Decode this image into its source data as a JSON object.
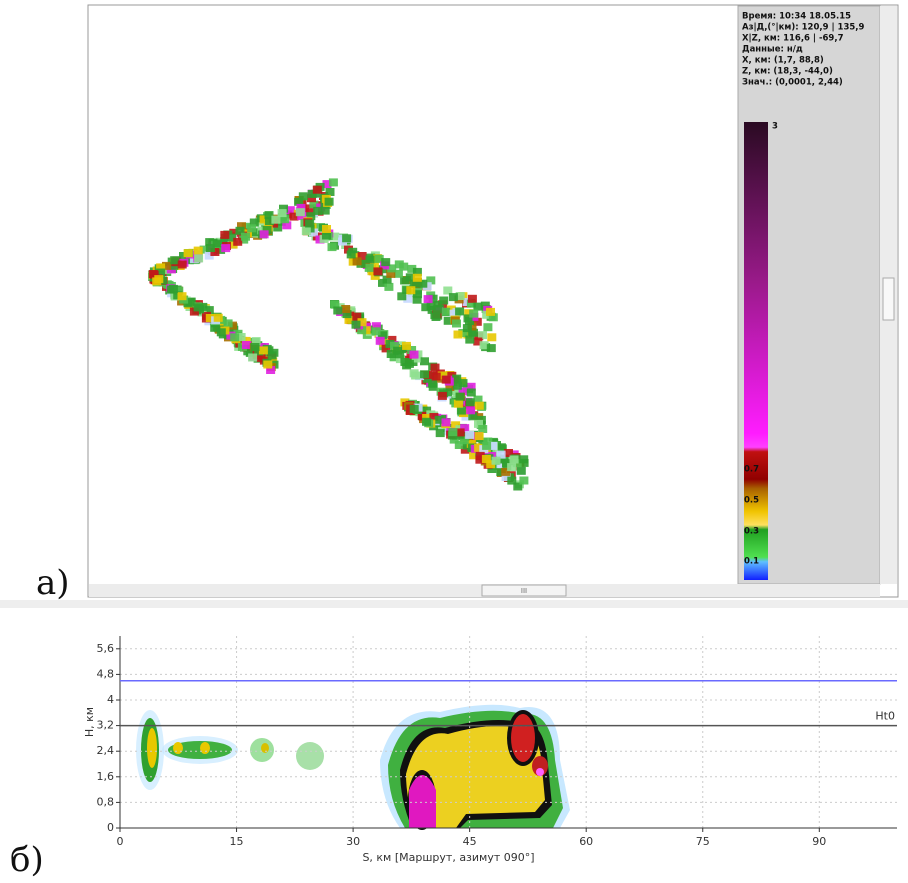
{
  "panel_labels": [
    "а)",
    "б)"
  ],
  "panel_a": {
    "info": [
      "Время: 10:34 18.05.15",
      "Аз|Д,(°|км): 120,9 | 135,9",
      "X|Z, км: 116,6 | -69,7",
      "Данные: н/д",
      "X, км: (1,7, 88,8)",
      "Z, км: (18,3, -44,0)",
      "Знач.: (0,0001, 2,44)"
    ],
    "colorbar_labels": [
      "3",
      "0.7",
      "0.5",
      "0.3",
      "0.1"
    ],
    "scroll_label": "III"
  },
  "chart_data": {
    "type": "line",
    "xlabel": "S, км [Маршрут, азимут 090°]",
    "ylabel": "H, км",
    "xlim": [
      0,
      100
    ],
    "xticks": [
      0,
      15,
      30,
      45,
      60,
      75,
      90
    ],
    "ylim": [
      0,
      6
    ],
    "yticks": [
      0,
      {
        "value": 0.8,
        "label": "0,8"
      },
      {
        "value": 1.6,
        "label": "1,6"
      },
      {
        "value": 2.4,
        "label": "2,4"
      },
      {
        "value": 3.2,
        "label": "3,2"
      },
      4,
      {
        "value": 4.8,
        "label": "4,8"
      },
      {
        "value": 5.6,
        "label": "5,6"
      }
    ],
    "grid": true,
    "hlines": [
      {
        "name": "Ht0",
        "value": 3.2,
        "color": "#555555"
      },
      {
        "value": 4.6,
        "color": "#6a6aff"
      }
    ]
  }
}
